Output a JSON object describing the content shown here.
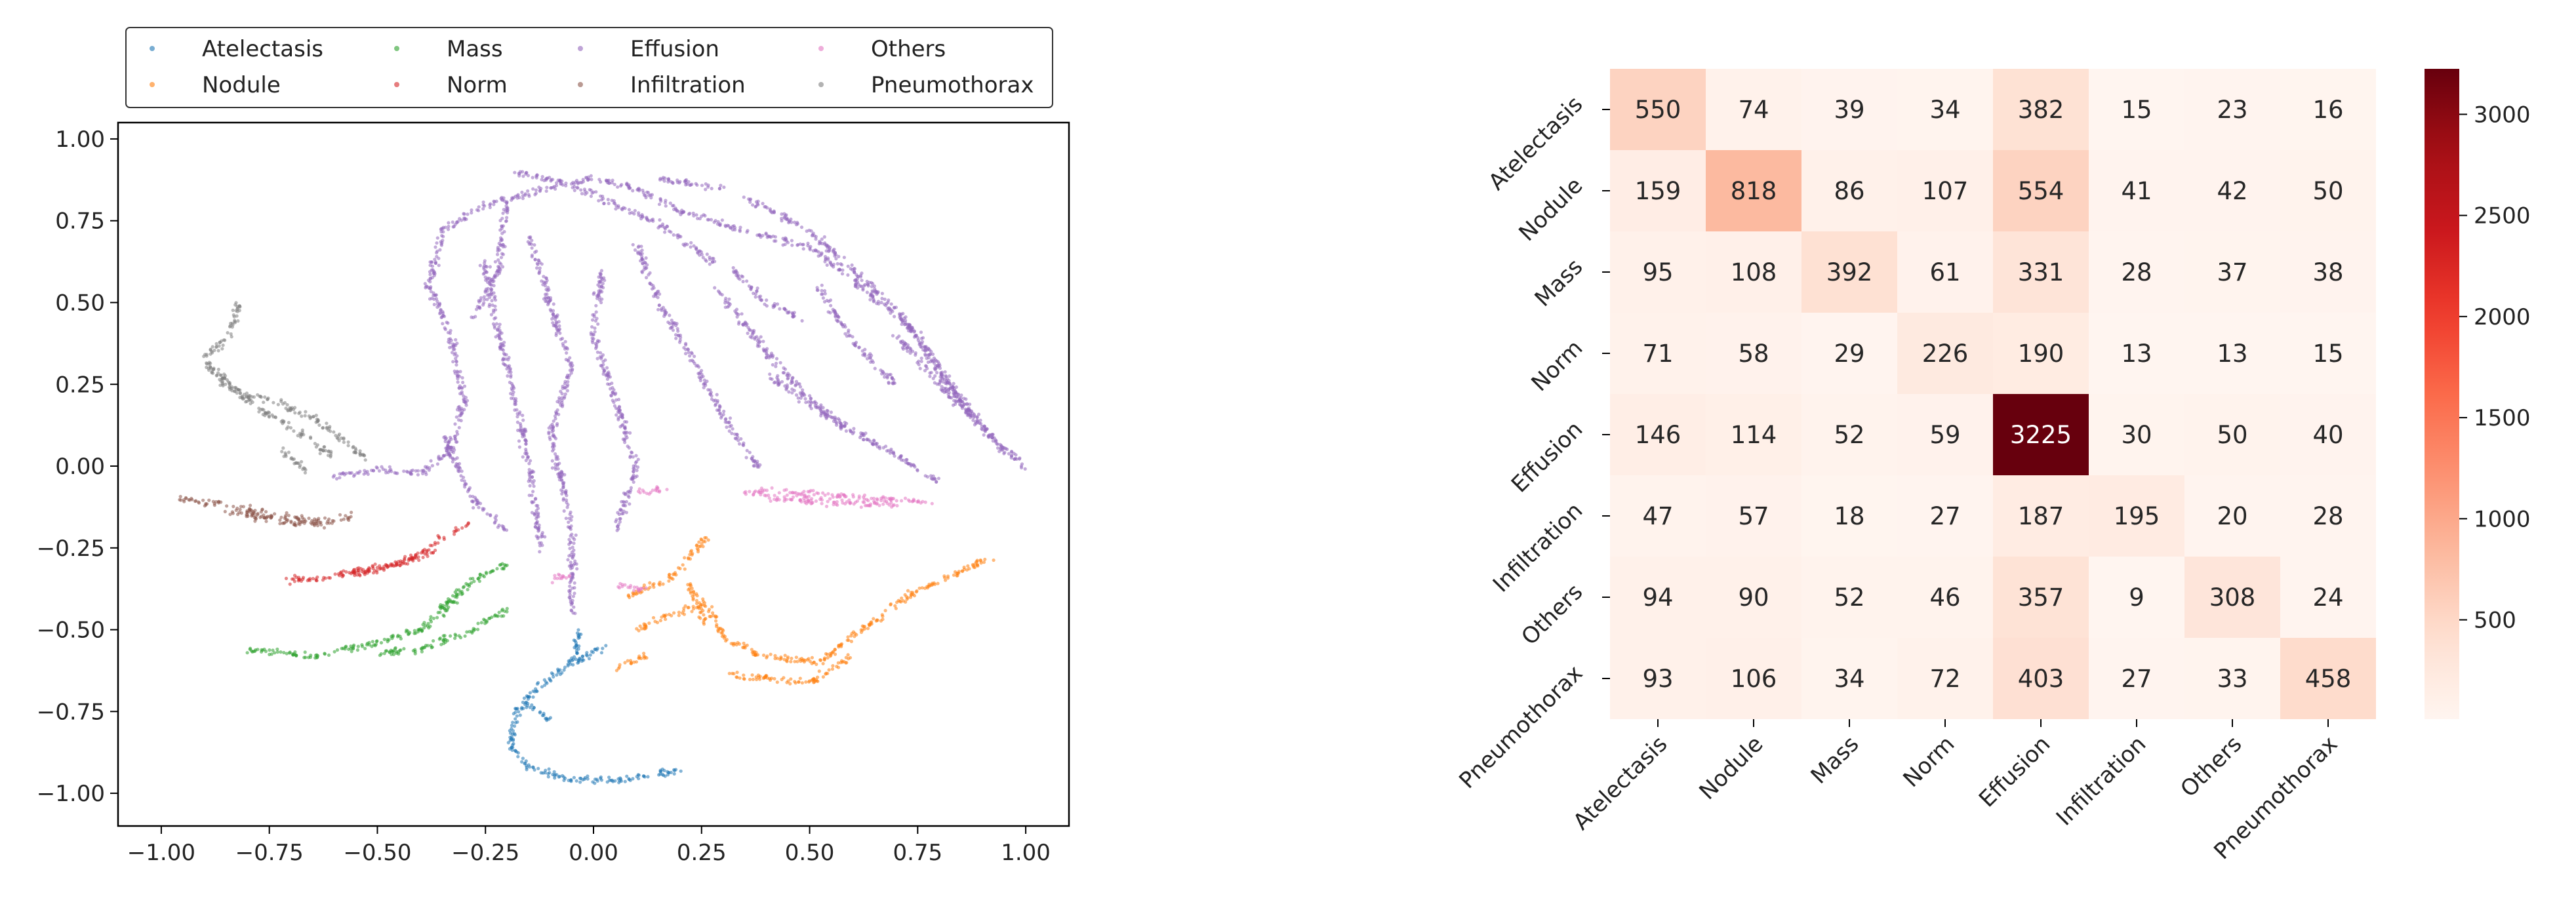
{
  "chart_data": [
    {
      "type": "scatter",
      "title": "",
      "xlabel": "",
      "ylabel": "",
      "xlim": [
        -1.1,
        1.1
      ],
      "ylim": [
        -1.1,
        1.05
      ],
      "xticks": [
        -1.0,
        -0.75,
        -0.5,
        -0.25,
        0.0,
        0.25,
        0.5,
        0.75,
        1.0
      ],
      "yticks": [
        -1.0,
        -0.75,
        -0.5,
        -0.25,
        0.0,
        0.25,
        0.5,
        0.75,
        1.0
      ],
      "xtick_labels": [
        "−1.00",
        "−0.75",
        "−0.50",
        "−0.25",
        "0.00",
        "0.25",
        "0.50",
        "0.75",
        "1.00"
      ],
      "ytick_labels": [
        "−1.00",
        "−0.75",
        "−0.50",
        "−0.25",
        "0.00",
        "0.25",
        "0.50",
        "0.75",
        "1.00"
      ],
      "legend_position": "top, outside plot, 4 columns",
      "series": [
        {
          "name": "Atelectasis",
          "color": "#1f77b4",
          "strokes": [
            [
              [
                -0.03,
                -0.5
              ],
              [
                -0.05,
                -0.6
              ],
              [
                -0.13,
                -0.68
              ],
              [
                -0.18,
                -0.75
              ],
              [
                -0.19,
                -0.85
              ],
              [
                -0.15,
                -0.92
              ],
              [
                -0.05,
                -0.96
              ],
              [
                0.07,
                -0.96
              ],
              [
                0.2,
                -0.93
              ]
            ],
            [
              [
                -0.05,
                -0.6
              ],
              [
                0.03,
                -0.55
              ]
            ],
            [
              [
                -0.16,
                -0.72
              ],
              [
                -0.1,
                -0.78
              ]
            ]
          ]
        },
        {
          "name": "Nodule",
          "color": "#ff7f0e",
          "strokes": [
            [
              [
                0.1,
                -0.5
              ],
              [
                0.18,
                -0.45
              ],
              [
                0.26,
                -0.42
              ],
              [
                0.3,
                -0.52
              ],
              [
                0.38,
                -0.58
              ],
              [
                0.52,
                -0.6
              ],
              [
                0.62,
                -0.5
              ],
              [
                0.75,
                -0.38
              ],
              [
                0.92,
                -0.28
              ]
            ],
            [
              [
                0.08,
                -0.4
              ],
              [
                0.18,
                -0.34
              ],
              [
                0.26,
                -0.22
              ]
            ],
            [
              [
                0.32,
                -0.64
              ],
              [
                0.5,
                -0.66
              ],
              [
                0.6,
                -0.58
              ]
            ],
            [
              [
                0.05,
                -0.62
              ],
              [
                0.12,
                -0.58
              ]
            ],
            [
              [
                0.22,
                -0.36
              ],
              [
                0.26,
                -0.48
              ]
            ]
          ]
        },
        {
          "name": "Mass",
          "color": "#2ca02c",
          "strokes": [
            [
              [
                -0.8,
                -0.56
              ],
              [
                -0.65,
                -0.58
              ],
              [
                -0.5,
                -0.54
              ],
              [
                -0.4,
                -0.5
              ],
              [
                -0.33,
                -0.42
              ],
              [
                -0.28,
                -0.35
              ],
              [
                -0.2,
                -0.3
              ]
            ],
            [
              [
                -0.5,
                -0.57
              ],
              [
                -0.4,
                -0.56
              ],
              [
                -0.28,
                -0.5
              ],
              [
                -0.2,
                -0.44
              ]
            ],
            [
              [
                -0.36,
                -0.44
              ],
              [
                -0.31,
                -0.38
              ]
            ]
          ]
        },
        {
          "name": "Norm",
          "color": "#d62728",
          "strokes": [
            [
              [
                -0.72,
                -0.35
              ],
              [
                -0.62,
                -0.34
              ],
              [
                -0.5,
                -0.32
              ],
              [
                -0.42,
                -0.28
              ],
              [
                -0.35,
                -0.22
              ]
            ],
            [
              [
                -0.6,
                -0.33
              ],
              [
                -0.45,
                -0.3
              ],
              [
                -0.37,
                -0.26
              ]
            ],
            [
              [
                -0.32,
                -0.2
              ],
              [
                -0.29,
                -0.17
              ]
            ]
          ]
        },
        {
          "name": "Effusion",
          "color": "#9467bd",
          "strokes": [
            [
              [
                -0.6,
                -0.03
              ],
              [
                -0.5,
                -0.01
              ],
              [
                -0.4,
                -0.02
              ],
              [
                -0.33,
                0.05
              ],
              [
                -0.3,
                0.2
              ],
              [
                -0.33,
                0.4
              ],
              [
                -0.38,
                0.55
              ],
              [
                -0.35,
                0.72
              ],
              [
                -0.25,
                0.8
              ],
              [
                -0.1,
                0.85
              ],
              [
                0.0,
                0.88
              ],
              [
                0.1,
                0.85
              ],
              [
                0.2,
                0.78
              ],
              [
                0.35,
                0.72
              ],
              [
                0.5,
                0.67
              ],
              [
                0.62,
                0.55
              ],
              [
                0.75,
                0.4
              ],
              [
                0.85,
                0.2
              ],
              [
                0.92,
                0.08
              ],
              [
                1.0,
                0.0
              ]
            ],
            [
              [
                -0.18,
                0.9
              ],
              [
                -0.05,
                0.86
              ],
              [
                0.05,
                0.8
              ],
              [
                0.18,
                0.72
              ],
              [
                0.28,
                0.62
              ]
            ],
            [
              [
                0.15,
                0.88
              ],
              [
                0.3,
                0.85
              ]
            ],
            [
              [
                0.35,
                0.82
              ],
              [
                0.5,
                0.72
              ],
              [
                0.6,
                0.6
              ],
              [
                0.72,
                0.45
              ],
              [
                0.82,
                0.25
              ],
              [
                0.95,
                0.05
              ]
            ],
            [
              [
                -0.15,
                0.7
              ],
              [
                -0.1,
                0.5
              ],
              [
                -0.05,
                0.3
              ],
              [
                -0.1,
                0.1
              ],
              [
                -0.05,
                -0.2
              ],
              [
                -0.05,
                -0.45
              ]
            ],
            [
              [
                -0.25,
                0.62
              ],
              [
                -0.22,
                0.4
              ],
              [
                -0.18,
                0.2
              ],
              [
                -0.15,
                0.0
              ],
              [
                -0.12,
                -0.25
              ]
            ],
            [
              [
                0.02,
                0.6
              ],
              [
                0.0,
                0.4
              ],
              [
                0.05,
                0.2
              ],
              [
                0.1,
                0.0
              ],
              [
                0.05,
                -0.2
              ]
            ],
            [
              [
                0.1,
                0.68
              ],
              [
                0.15,
                0.5
              ],
              [
                0.22,
                0.35
              ],
              [
                0.3,
                0.15
              ],
              [
                0.38,
                0.0
              ]
            ],
            [
              [
                0.28,
                0.55
              ],
              [
                0.4,
                0.35
              ],
              [
                0.5,
                0.2
              ],
              [
                0.6,
                0.1
              ]
            ],
            [
              [
                0.4,
                0.28
              ],
              [
                0.55,
                0.15
              ],
              [
                0.68,
                0.05
              ],
              [
                0.8,
                -0.05
              ]
            ],
            [
              [
                0.52,
                0.55
              ],
              [
                0.6,
                0.38
              ],
              [
                0.7,
                0.25
              ]
            ],
            [
              [
                0.7,
                0.4
              ],
              [
                0.8,
                0.25
              ],
              [
                0.9,
                0.12
              ]
            ],
            [
              [
                -0.35,
                0.1
              ],
              [
                -0.28,
                -0.1
              ],
              [
                -0.2,
                -0.2
              ]
            ],
            [
              [
                0.32,
                0.6
              ],
              [
                0.4,
                0.5
              ],
              [
                0.48,
                0.45
              ]
            ],
            [
              [
                -0.2,
                0.8
              ],
              [
                -0.22,
                0.6
              ],
              [
                -0.28,
                0.45
              ]
            ]
          ]
        },
        {
          "name": "Infiltration",
          "color": "#8c564b",
          "strokes": [
            [
              [
                -0.96,
                -0.1
              ],
              [
                -0.85,
                -0.12
              ],
              [
                -0.75,
                -0.15
              ],
              [
                -0.65,
                -0.17
              ],
              [
                -0.58,
                -0.16
              ],
              [
                -0.55,
                -0.15
              ]
            ],
            [
              [
                -0.85,
                -0.14
              ],
              [
                -0.72,
                -0.17
              ],
              [
                -0.62,
                -0.18
              ]
            ]
          ]
        },
        {
          "name": "Others",
          "color": "#e377c2",
          "strokes": [
            [
              [
                0.35,
                -0.08
              ],
              [
                0.45,
                -0.08
              ],
              [
                0.55,
                -0.09
              ],
              [
                0.65,
                -0.1
              ],
              [
                0.78,
                -0.11
              ]
            ],
            [
              [
                0.4,
                -0.1
              ],
              [
                0.55,
                -0.11
              ],
              [
                0.7,
                -0.12
              ]
            ],
            [
              [
                0.05,
                -0.36
              ],
              [
                0.12,
                -0.38
              ]
            ],
            [
              [
                -0.1,
                -0.35
              ],
              [
                -0.05,
                -0.33
              ]
            ],
            [
              [
                0.1,
                -0.08
              ],
              [
                0.17,
                -0.07
              ]
            ]
          ]
        },
        {
          "name": "Pneumothorax",
          "color": "#7f7f7f",
          "strokes": [
            [
              [
                -0.82,
                0.5
              ],
              [
                -0.84,
                0.4
              ],
              [
                -0.9,
                0.33
              ],
              [
                -0.86,
                0.25
              ],
              [
                -0.75,
                0.2
              ],
              [
                -0.65,
                0.15
              ],
              [
                -0.58,
                0.08
              ],
              [
                -0.52,
                0.02
              ]
            ],
            [
              [
                -0.88,
                0.3
              ],
              [
                -0.78,
                0.18
              ],
              [
                -0.68,
                0.1
              ],
              [
                -0.6,
                0.03
              ]
            ],
            [
              [
                -0.72,
                0.05
              ],
              [
                -0.66,
                -0.02
              ]
            ]
          ]
        }
      ],
      "legend": [
        {
          "label": "Atelectasis",
          "color": "#1f77b4"
        },
        {
          "label": "Mass",
          "color": "#2ca02c"
        },
        {
          "label": "Effusion",
          "color": "#9467bd"
        },
        {
          "label": "Others",
          "color": "#e377c2"
        },
        {
          "label": "Nodule",
          "color": "#ff7f0e"
        },
        {
          "label": "Norm",
          "color": "#d62728"
        },
        {
          "label": "Infiltration",
          "color": "#8c564b"
        },
        {
          "label": "Pneumothorax",
          "color": "#7f7f7f"
        }
      ]
    },
    {
      "type": "heatmap",
      "title": "",
      "row_labels": [
        "Atelectasis",
        "Nodule",
        "Mass",
        "Norm",
        "Effusion",
        "Infiltration",
        "Others",
        "Pneumothorax"
      ],
      "col_labels": [
        "Atelectasis",
        "Nodule",
        "Mass",
        "Norm",
        "Effusion",
        "Infiltration",
        "Others",
        "Pneumothorax"
      ],
      "values": [
        [
          550,
          74,
          39,
          34,
          382,
          15,
          23,
          16
        ],
        [
          159,
          818,
          86,
          107,
          554,
          41,
          42,
          50
        ],
        [
          95,
          108,
          392,
          61,
          331,
          28,
          37,
          38
        ],
        [
          71,
          58,
          29,
          226,
          190,
          13,
          13,
          15
        ],
        [
          146,
          114,
          52,
          59,
          3225,
          30,
          50,
          40
        ],
        [
          47,
          57,
          18,
          27,
          187,
          195,
          20,
          28
        ],
        [
          94,
          90,
          52,
          46,
          357,
          9,
          308,
          24
        ],
        [
          93,
          106,
          34,
          72,
          403,
          27,
          33,
          458
        ]
      ],
      "colormap": "Reds",
      "vmin": 9,
      "vmax": 3225,
      "colorbar_ticks": [
        500,
        1000,
        1500,
        2000,
        2500,
        3000
      ]
    }
  ]
}
